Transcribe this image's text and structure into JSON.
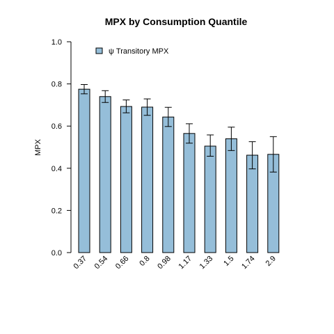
{
  "chart_data": {
    "type": "bar",
    "title": "MPX  by  Consumption Quantile",
    "xlabel": "",
    "ylabel": "MPX",
    "ylim": [
      0,
      1.0
    ],
    "yticks": [
      "0.0",
      "0.2",
      "0.4",
      "0.6",
      "0.8",
      "1.0"
    ],
    "categories": [
      "0.37",
      "0.54",
      "0.66",
      "0.8",
      "0.98",
      "1.17",
      "1.33",
      "1.5",
      "1.74",
      "2.9"
    ],
    "series": [
      {
        "name": "ψ Transitory MPX",
        "values": [
          0.775,
          0.74,
          0.693,
          0.69,
          0.643,
          0.565,
          0.505,
          0.54,
          0.462,
          0.466
        ],
        "error_low": [
          0.753,
          0.712,
          0.663,
          0.651,
          0.598,
          0.519,
          0.457,
          0.484,
          0.397,
          0.382
        ],
        "error_high": [
          0.797,
          0.768,
          0.724,
          0.729,
          0.689,
          0.611,
          0.558,
          0.595,
          0.526,
          0.55
        ]
      }
    ],
    "legend": {
      "position": "top-left",
      "label": "ψ Transitory MPX"
    },
    "grid": false,
    "colors": {
      "bar": "#95bed9",
      "outline": "#000000"
    }
  }
}
